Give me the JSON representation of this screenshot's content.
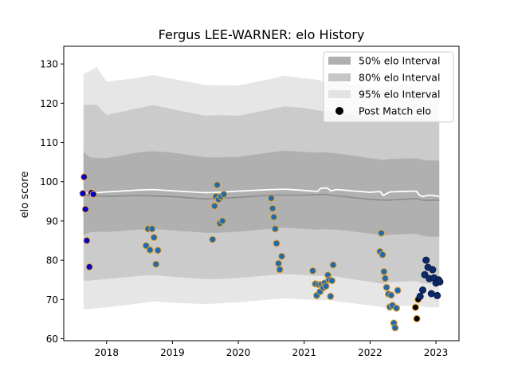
{
  "chart_data": {
    "type": "scatter",
    "title": "Fergus LEE-WARNER: elo History",
    "xlabel": "",
    "ylabel": "elo score",
    "xlim": [
      2017.35,
      2023.35
    ],
    "ylim": [
      59.5,
      134.5
    ],
    "x_ticks": [
      2018,
      2019,
      2020,
      2021,
      2022,
      2023
    ],
    "x_tick_labels": [
      "2018",
      "2019",
      "2020",
      "2021",
      "2022",
      "2023"
    ],
    "y_ticks": [
      60,
      70,
      80,
      90,
      100,
      110,
      120,
      130
    ],
    "y_tick_labels": [
      "60",
      "70",
      "80",
      "90",
      "100",
      "110",
      "120",
      "130"
    ],
    "legend_position": "top-right",
    "legend": [
      {
        "label": "50% elo Interval",
        "kind": "band",
        "color": "#b0b0b0"
      },
      {
        "label": "80% elo Interval",
        "kind": "band",
        "color": "#c6c6c6"
      },
      {
        "label": "95% elo Interval",
        "kind": "band",
        "color": "#e3e3e3"
      },
      {
        "label": "Post Match elo",
        "kind": "marker",
        "color": "#000000"
      }
    ],
    "colors": {
      "band_50": "#b0b0b0",
      "band_80": "#cbcbcb",
      "band_95": "#e6e6e6",
      "mean_line": "#ffffff",
      "median_line": "#8c8c8c"
    },
    "mean_line": {
      "x": [
        2017.65,
        2017.75,
        2017.85,
        2018.0,
        2018.5,
        2018.7,
        2019.0,
        2019.5,
        2019.7,
        2020.0,
        2020.5,
        2020.7,
        2021.0,
        2021.2,
        2021.25,
        2021.35,
        2021.4,
        2021.5,
        2022.0,
        2022.15,
        2022.2,
        2022.3,
        2022.7,
        2022.75,
        2022.8,
        2022.9,
        2023.0,
        2023.05
      ],
      "y": [
        97.0,
        97.3,
        97.2,
        97.4,
        97.9,
        98.0,
        97.7,
        97.2,
        97.3,
        97.6,
        98.0,
        98.1,
        97.8,
        97.5,
        98.3,
        98.4,
        97.7,
        98.0,
        97.3,
        97.5,
        96.5,
        97.4,
        97.6,
        96.6,
        96.2,
        96.6,
        96.4,
        96.2
      ]
    },
    "median_line": {
      "x": [
        2017.65,
        2018.0,
        2018.5,
        2019.0,
        2019.5,
        2020.0,
        2020.5,
        2021.0,
        2021.3,
        2021.5,
        2022.0,
        2022.25,
        2022.7,
        2022.8,
        2023.05
      ],
      "y": [
        96.5,
        96.3,
        96.5,
        96.2,
        95.6,
        96.0,
        96.6,
        96.6,
        96.8,
        96.4,
        95.5,
        95.3,
        95.7,
        95.3,
        95.3
      ]
    },
    "bands": {
      "x": [
        2017.65,
        2017.75,
        2017.85,
        2018.0,
        2018.5,
        2018.7,
        2019.0,
        2019.5,
        2019.7,
        2020.0,
        2020.5,
        2020.7,
        2021.0,
        2021.2,
        2021.3,
        2021.4,
        2021.5,
        2022.0,
        2022.2,
        2022.3,
        2022.7,
        2022.8,
        2022.9,
        2023.05
      ],
      "p95_upper": [
        127.5,
        128.2,
        129.3,
        125.5,
        126.5,
        127.2,
        126.2,
        124.6,
        124.6,
        124.5,
        126.2,
        127.0,
        126.3,
        126.0,
        125.5,
        125.5,
        125.6,
        124.0,
        123.5,
        124.0,
        124.5,
        124.0,
        123.8,
        123.8
      ],
      "p80_upper": [
        119.5,
        119.6,
        119.6,
        117.0,
        118.8,
        119.5,
        118.5,
        116.8,
        117.0,
        116.8,
        118.5,
        119.2,
        118.8,
        118.2,
        118.0,
        118.0,
        117.9,
        116.3,
        115.7,
        116.0,
        116.5,
        116.0,
        115.8,
        115.8
      ],
      "p50_upper": [
        107.5,
        106.2,
        106.0,
        106.0,
        107.5,
        107.8,
        107.4,
        106.2,
        106.2,
        106.3,
        107.5,
        107.9,
        107.6,
        107.4,
        107.5,
        107.3,
        107.2,
        106.0,
        105.6,
        105.8,
        106.0,
        105.6,
        105.4,
        105.4
      ],
      "p50_lower": [
        86.5,
        87.1,
        87.3,
        87.2,
        87.8,
        88.0,
        87.6,
        87.0,
        87.0,
        87.3,
        88.0,
        88.3,
        88.0,
        87.8,
        87.9,
        87.8,
        87.8,
        86.8,
        86.3,
        86.5,
        86.8,
        86.2,
        86.0,
        86.0
      ],
      "p80_lower": [
        74.8,
        74.8,
        75.0,
        75.2,
        76.0,
        76.2,
        75.8,
        75.2,
        75.2,
        75.5,
        76.2,
        76.5,
        76.2,
        76.0,
        76.0,
        76.0,
        75.8,
        74.5,
        74.0,
        74.4,
        74.7,
        74.2,
        74.0,
        74.0
      ],
      "p95_lower": [
        67.5,
        67.6,
        67.8,
        68.0,
        69.0,
        69.5,
        69.2,
        68.8,
        69.0,
        69.3,
        70.0,
        70.3,
        70.0,
        69.8,
        69.8,
        69.8,
        69.5,
        68.5,
        68.0,
        68.2,
        68.5,
        68.2,
        68.0,
        68.0
      ]
    },
    "series": [
      {
        "marker_fill": "#0000cc",
        "marker_edge": "#f2a11d",
        "points": [
          [
            2017.64,
            97.0
          ],
          [
            2017.66,
            101.2
          ],
          [
            2017.68,
            93.0
          ],
          [
            2017.7,
            85.0
          ],
          [
            2017.74,
            78.3
          ],
          [
            2017.77,
            97.2
          ],
          [
            2017.8,
            96.8
          ]
        ]
      },
      {
        "marker_fill": "#1f6bb0",
        "marker_edge": "#f2a11d",
        "points": [
          [
            2018.6,
            83.7
          ],
          [
            2018.63,
            88.0
          ],
          [
            2018.66,
            82.6
          ],
          [
            2018.69,
            88.0
          ],
          [
            2018.72,
            85.8
          ],
          [
            2018.75,
            79.0
          ],
          [
            2018.78,
            82.5
          ],
          [
            2019.61,
            85.3
          ],
          [
            2019.64,
            93.8
          ],
          [
            2019.66,
            96.2
          ],
          [
            2019.68,
            99.2
          ],
          [
            2019.7,
            95.5
          ],
          [
            2019.72,
            89.4
          ],
          [
            2019.74,
            96.2
          ],
          [
            2019.76,
            90.0
          ],
          [
            2019.78,
            96.8
          ],
          [
            2020.5,
            95.8
          ],
          [
            2020.52,
            93.2
          ],
          [
            2020.54,
            91.0
          ],
          [
            2020.56,
            88.0
          ],
          [
            2020.58,
            84.3
          ],
          [
            2020.61,
            79.2
          ],
          [
            2020.63,
            77.6
          ],
          [
            2020.66,
            81.0
          ],
          [
            2021.13,
            77.3
          ],
          [
            2021.17,
            74.0
          ],
          [
            2021.19,
            71.0
          ],
          [
            2021.22,
            73.8
          ],
          [
            2021.24,
            72.0
          ],
          [
            2021.26,
            73.8
          ],
          [
            2021.29,
            73.0
          ],
          [
            2021.31,
            74.2
          ],
          [
            2021.33,
            73.4
          ],
          [
            2021.36,
            76.2
          ],
          [
            2021.38,
            75.0
          ],
          [
            2021.4,
            70.8
          ],
          [
            2021.42,
            74.8
          ],
          [
            2021.44,
            78.8
          ],
          [
            2022.15,
            82.2
          ],
          [
            2022.17,
            86.9
          ],
          [
            2022.19,
            81.4
          ],
          [
            2022.21,
            77.1
          ],
          [
            2022.23,
            75.4
          ],
          [
            2022.25,
            73.1
          ],
          [
            2022.28,
            71.4
          ],
          [
            2022.3,
            68.1
          ],
          [
            2022.32,
            71.1
          ],
          [
            2022.34,
            68.5
          ],
          [
            2022.36,
            64.0
          ],
          [
            2022.38,
            62.8
          ],
          [
            2022.4,
            67.8
          ],
          [
            2022.42,
            72.3
          ]
        ]
      },
      {
        "marker_fill": "#000000",
        "marker_edge": "#f2a11d",
        "points": [
          [
            2022.69,
            68.0
          ],
          [
            2022.71,
            65.1
          ],
          [
            2022.73,
            70.0
          ]
        ]
      },
      {
        "marker_fill": "#0b2a6b",
        "marker_edge": "#0b1a40",
        "points": [
          [
            2022.76,
            70.8
          ],
          [
            2022.8,
            72.4
          ],
          [
            2022.83,
            76.3
          ],
          [
            2022.85,
            80.0
          ],
          [
            2022.88,
            78.2
          ],
          [
            2022.9,
            75.3
          ],
          [
            2022.93,
            71.5
          ],
          [
            2022.95,
            77.6
          ],
          [
            2022.97,
            75.5
          ],
          [
            2023.0,
            74.2
          ],
          [
            2023.02,
            71.0
          ],
          [
            2023.04,
            75.0
          ],
          [
            2023.06,
            74.5
          ]
        ]
      }
    ]
  }
}
